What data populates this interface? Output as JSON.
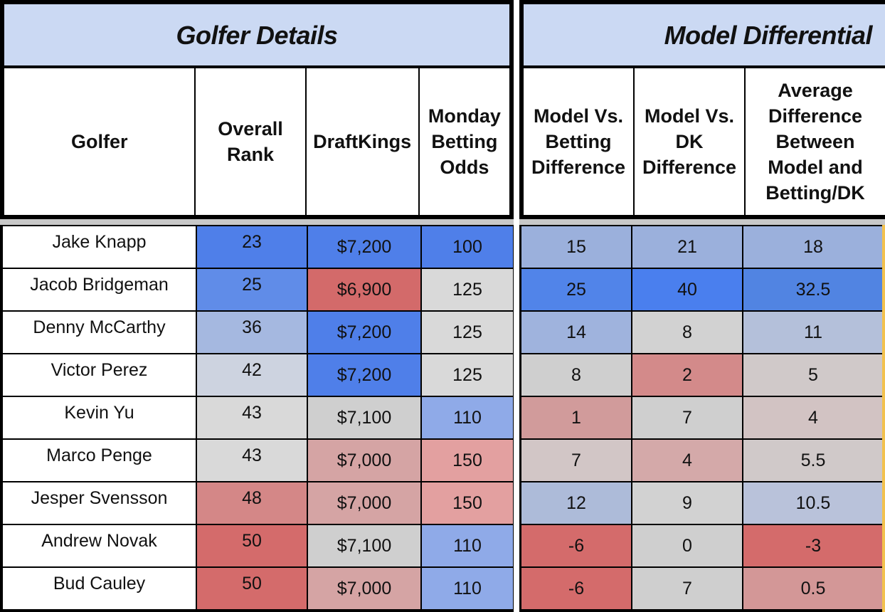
{
  "sections": {
    "left_title": "Golfer Details",
    "right_title": "Model Differential"
  },
  "headers": {
    "left": [
      "Golfer",
      "Overall\nRank",
      "DraftKings",
      "Monday\nBetting\nOdds"
    ],
    "right": [
      "Model Vs.\nBetting\nDifference",
      "Model Vs.\nDK\nDifference",
      "Average\nDifference\nBetween\nModel and\nBetting/DK"
    ]
  },
  "rows": [
    {
      "golfer": "Jake Knapp",
      "rank": "23",
      "dk": "$7,200",
      "odds": "100",
      "mvb": "15",
      "mvdk": "21",
      "avg": "18",
      "colors": {
        "rank": "#4f7fe9",
        "dk": "#4f7fe9",
        "odds": "#4f7fe9",
        "mvb": "#9bb0dc",
        "mvdk": "#9bb0dc",
        "avg": "#9bb0dc"
      }
    },
    {
      "golfer": "Jacob Bridgeman",
      "rank": "25",
      "dk": "$6,900",
      "odds": "125",
      "mvb": "25",
      "mvdk": "40",
      "avg": "32.5",
      "colors": {
        "rank": "#608ce8",
        "dk": "#d36a6a",
        "odds": "#d9d9d9",
        "mvb": "#5184e9",
        "mvdk": "#4a7fee",
        "avg": "#5184e2"
      }
    },
    {
      "golfer": "Denny McCarthy",
      "rank": "36",
      "dk": "$7,200",
      "odds": "125",
      "mvb": "14",
      "mvdk": "8",
      "avg": "11",
      "colors": {
        "rank": "#a5b8e0",
        "dk": "#4f7fe9",
        "odds": "#d9d9d9",
        "mvb": "#9fb3dd",
        "mvdk": "#d2d2d2",
        "avg": "#b4c0da"
      }
    },
    {
      "golfer": "Victor Perez",
      "rank": "42",
      "dk": "$7,200",
      "odds": "125",
      "mvb": "8",
      "mvdk": "2",
      "avg": "5",
      "colors": {
        "rank": "#cdd3e0",
        "dk": "#4f7fe9",
        "odds": "#d9d9d9",
        "mvb": "#cfcfcf",
        "mvdk": "#d38a8a",
        "avg": "#d0c9c9"
      }
    },
    {
      "golfer": "Kevin Yu",
      "rank": "43",
      "dk": "$7,100",
      "odds": "110",
      "mvb": "1",
      "mvdk": "7",
      "avg": "4",
      "colors": {
        "rank": "#d9d9d9",
        "dk": "#cfcfcf",
        "odds": "#8faae8",
        "mvb": "#d19b9b",
        "mvdk": "#cfcfcf",
        "avg": "#d2c3c3"
      }
    },
    {
      "golfer": "Marco Penge",
      "rank": "43",
      "dk": "$7,000",
      "odds": "150",
      "mvb": "7",
      "mvdk": "4",
      "avg": "5.5",
      "colors": {
        "rank": "#d9d9d9",
        "dk": "#d5a4a4",
        "odds": "#e3a0a0",
        "mvb": "#d2c6c6",
        "mvdk": "#d4a9a9",
        "avg": "#d0c9c9"
      }
    },
    {
      "golfer": "Jesper Svensson",
      "rank": "48",
      "dk": "$7,000",
      "odds": "150",
      "mvb": "12",
      "mvdk": "9",
      "avg": "10.5",
      "colors": {
        "rank": "#d48787",
        "dk": "#d5a4a4",
        "odds": "#e3a0a0",
        "mvb": "#adbbd9",
        "mvdk": "#d2d2d2",
        "avg": "#b9c2da"
      }
    },
    {
      "golfer": "Andrew Novak",
      "rank": "50",
      "dk": "$7,100",
      "odds": "110",
      "mvb": "-6",
      "mvdk": "0",
      "avg": "-3",
      "colors": {
        "rank": "#d46b6b",
        "dk": "#cfcfcf",
        "odds": "#8faae8",
        "mvb": "#d46b6b",
        "mvdk": "#cfcfcf",
        "avg": "#d46b6b"
      }
    },
    {
      "golfer": "Bud Cauley",
      "rank": "50",
      "dk": "$7,000",
      "odds": "110",
      "mvb": "-6",
      "mvdk": "7",
      "avg": "0.5",
      "colors": {
        "rank": "#d46b6b",
        "dk": "#d5a4a4",
        "odds": "#8faae8",
        "mvb": "#d46b6b",
        "mvdk": "#cfcfcf",
        "avg": "#d39797"
      }
    }
  ]
}
